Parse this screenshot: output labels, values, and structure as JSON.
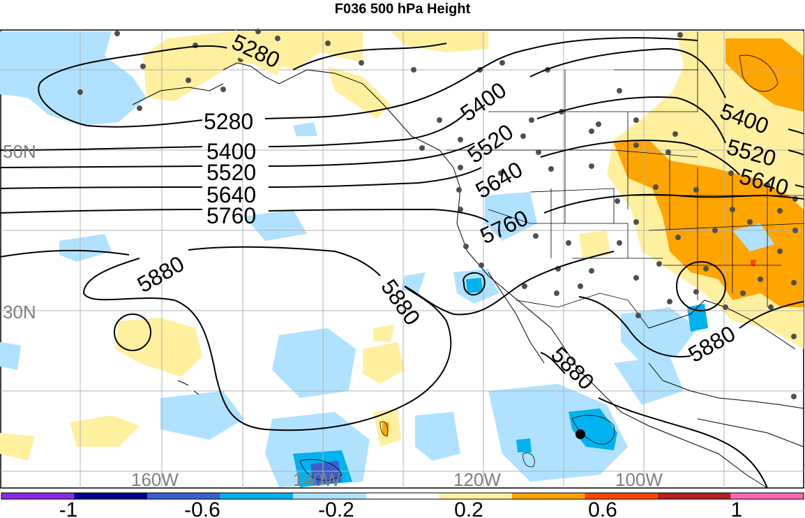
{
  "title": "F036 500 hPa Height",
  "lat_labels": [
    "50N",
    "30N"
  ],
  "lon_labels": [
    "160W",
    "140W",
    "120W",
    "100W"
  ],
  "contour_labels": [
    "5280",
    "5280",
    "5400",
    "5520",
    "5640",
    "5760",
    "5880",
    "5880",
    "5880",
    "5400",
    "5520",
    "5640",
    "5760",
    "5400",
    "5520",
    "5640",
    "5880"
  ],
  "colorbar": {
    "tick_labels": [
      "-1",
      "-0.6",
      "-0.2",
      "0.2",
      "0.6",
      "1"
    ],
    "colors": [
      "#8a2be2",
      "#00008b",
      "#3a5fcd",
      "#00b2ee",
      "#b0e2ff",
      "#ffffff",
      "#fff0a0",
      "#ffa500",
      "#ff4500",
      "#b22222",
      "#ff69b4"
    ]
  },
  "shading_colors": {
    "light_blue": "#b0e2ff",
    "blue": "#00b2ee",
    "dark_blue": "#3a5fcd",
    "light_yellow": "#fff0a0",
    "orange": "#ffa500",
    "red": "#ff4500"
  }
}
